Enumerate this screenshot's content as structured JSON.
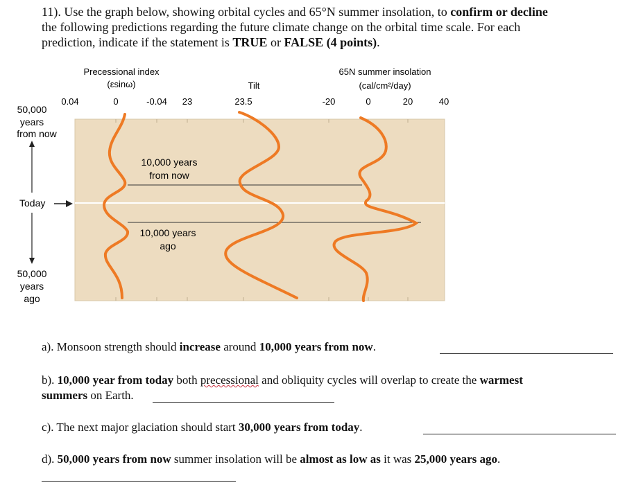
{
  "question": {
    "num": "11). Use the graph below, showing orbital cycles and 65°N summer insolation, to",
    "confirm": "confirm or decline",
    "line2": "the following predictions regarding the future climate change on the orbital time scale. For each",
    "line3a": "prediction, indicate if the statement is",
    "true": "TRUE",
    "or": "or",
    "false": "FALSE",
    "points": "(4 points)",
    "period": "."
  },
  "figure": {
    "prec_title": "Precessional index",
    "prec_unit": "(εsinω)",
    "tilt_title": "Tilt",
    "ins_title": "65N summer insolation",
    "ins_unit": "(cal/cm²/day)",
    "prec_ticks": [
      "0.04",
      "0",
      "-0.04"
    ],
    "tilt_ticks": [
      "23",
      "23.5"
    ],
    "ins_ticks": [
      "-20",
      "0",
      "20",
      "40"
    ],
    "left_top": [
      "50,000",
      "years",
      "from now"
    ],
    "left_today": "Today",
    "left_bottom": [
      "50,000",
      "years",
      "ago"
    ],
    "mark_future": [
      "10,000 years",
      "from now"
    ],
    "mark_past": [
      "10,000 years",
      "ago"
    ],
    "colors": {
      "background": "#eddcc0",
      "curve": "#ee7a24",
      "today_line": "#ffffff"
    }
  },
  "answers": {
    "a_pre": "a). Monsoon strength should ",
    "a_b1": "increase",
    "a_mid": " around ",
    "a_b2": "10,000 years from now",
    "a_end": ".",
    "b_pre": "b). ",
    "b_b1": "10,000 year from today",
    "b_mid1": " both ",
    "b_wavy": "precessional",
    "b_mid2": " and obliquity cycles will overlap to create the ",
    "b_b2": "warmest",
    "b_line2_b": "summers",
    "b_line2": " on Earth.",
    "c_pre": "c). The next major glaciation should start ",
    "c_b1": "30,000 years from today",
    "c_end": ".",
    "d_pre": "d). ",
    "d_b1": "50,000 years from now",
    "d_mid": " summer insolation will be ",
    "d_b2": "almost as low as",
    "d_mid2": " it was ",
    "d_b3": "25,000 years ago",
    "d_end": "."
  }
}
